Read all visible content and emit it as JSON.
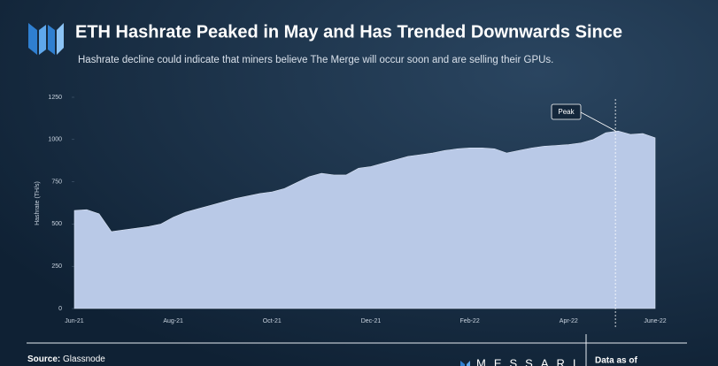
{
  "chart_data": {
    "type": "area",
    "title": "ETH Hashrate Peaked in May and Has Trended Downwards Since",
    "subtitle": "Hashrate decline could indicate that miners believe The Merge will occur soon and are selling their GPUs.",
    "y_label": "Hashrate (TH/s)",
    "categories": [
      "Jun-21",
      null,
      null,
      null,
      null,
      null,
      null,
      null,
      "Aug-21",
      null,
      null,
      null,
      null,
      null,
      null,
      null,
      "Oct-21",
      null,
      null,
      null,
      null,
      null,
      null,
      null,
      "Dec-21",
      null,
      null,
      null,
      null,
      null,
      null,
      null,
      "Feb-22",
      null,
      null,
      null,
      null,
      null,
      null,
      null,
      "Apr-22",
      null,
      null,
      null,
      null,
      null,
      null,
      "June-22"
    ],
    "values": [
      580,
      585,
      560,
      455,
      465,
      475,
      485,
      500,
      540,
      570,
      590,
      610,
      630,
      650,
      665,
      680,
      690,
      710,
      745,
      780,
      800,
      790,
      790,
      830,
      840,
      860,
      880,
      900,
      910,
      920,
      935,
      945,
      950,
      950,
      945,
      920,
      935,
      950,
      960,
      965,
      970,
      980,
      1000,
      1040,
      1050,
      1030,
      1035,
      1010
    ],
    "color": "#b9c9e7",
    "ylim": [
      0,
      1250
    ],
    "yticks": [
      0,
      250,
      500,
      750,
      1000,
      1250
    ],
    "grid": false,
    "annotation": "Peak",
    "footer": {
      "source_label": "Source:",
      "source": "Glassnode",
      "brand": "MESSARI",
      "data_as_of": "Data as of"
    }
  }
}
